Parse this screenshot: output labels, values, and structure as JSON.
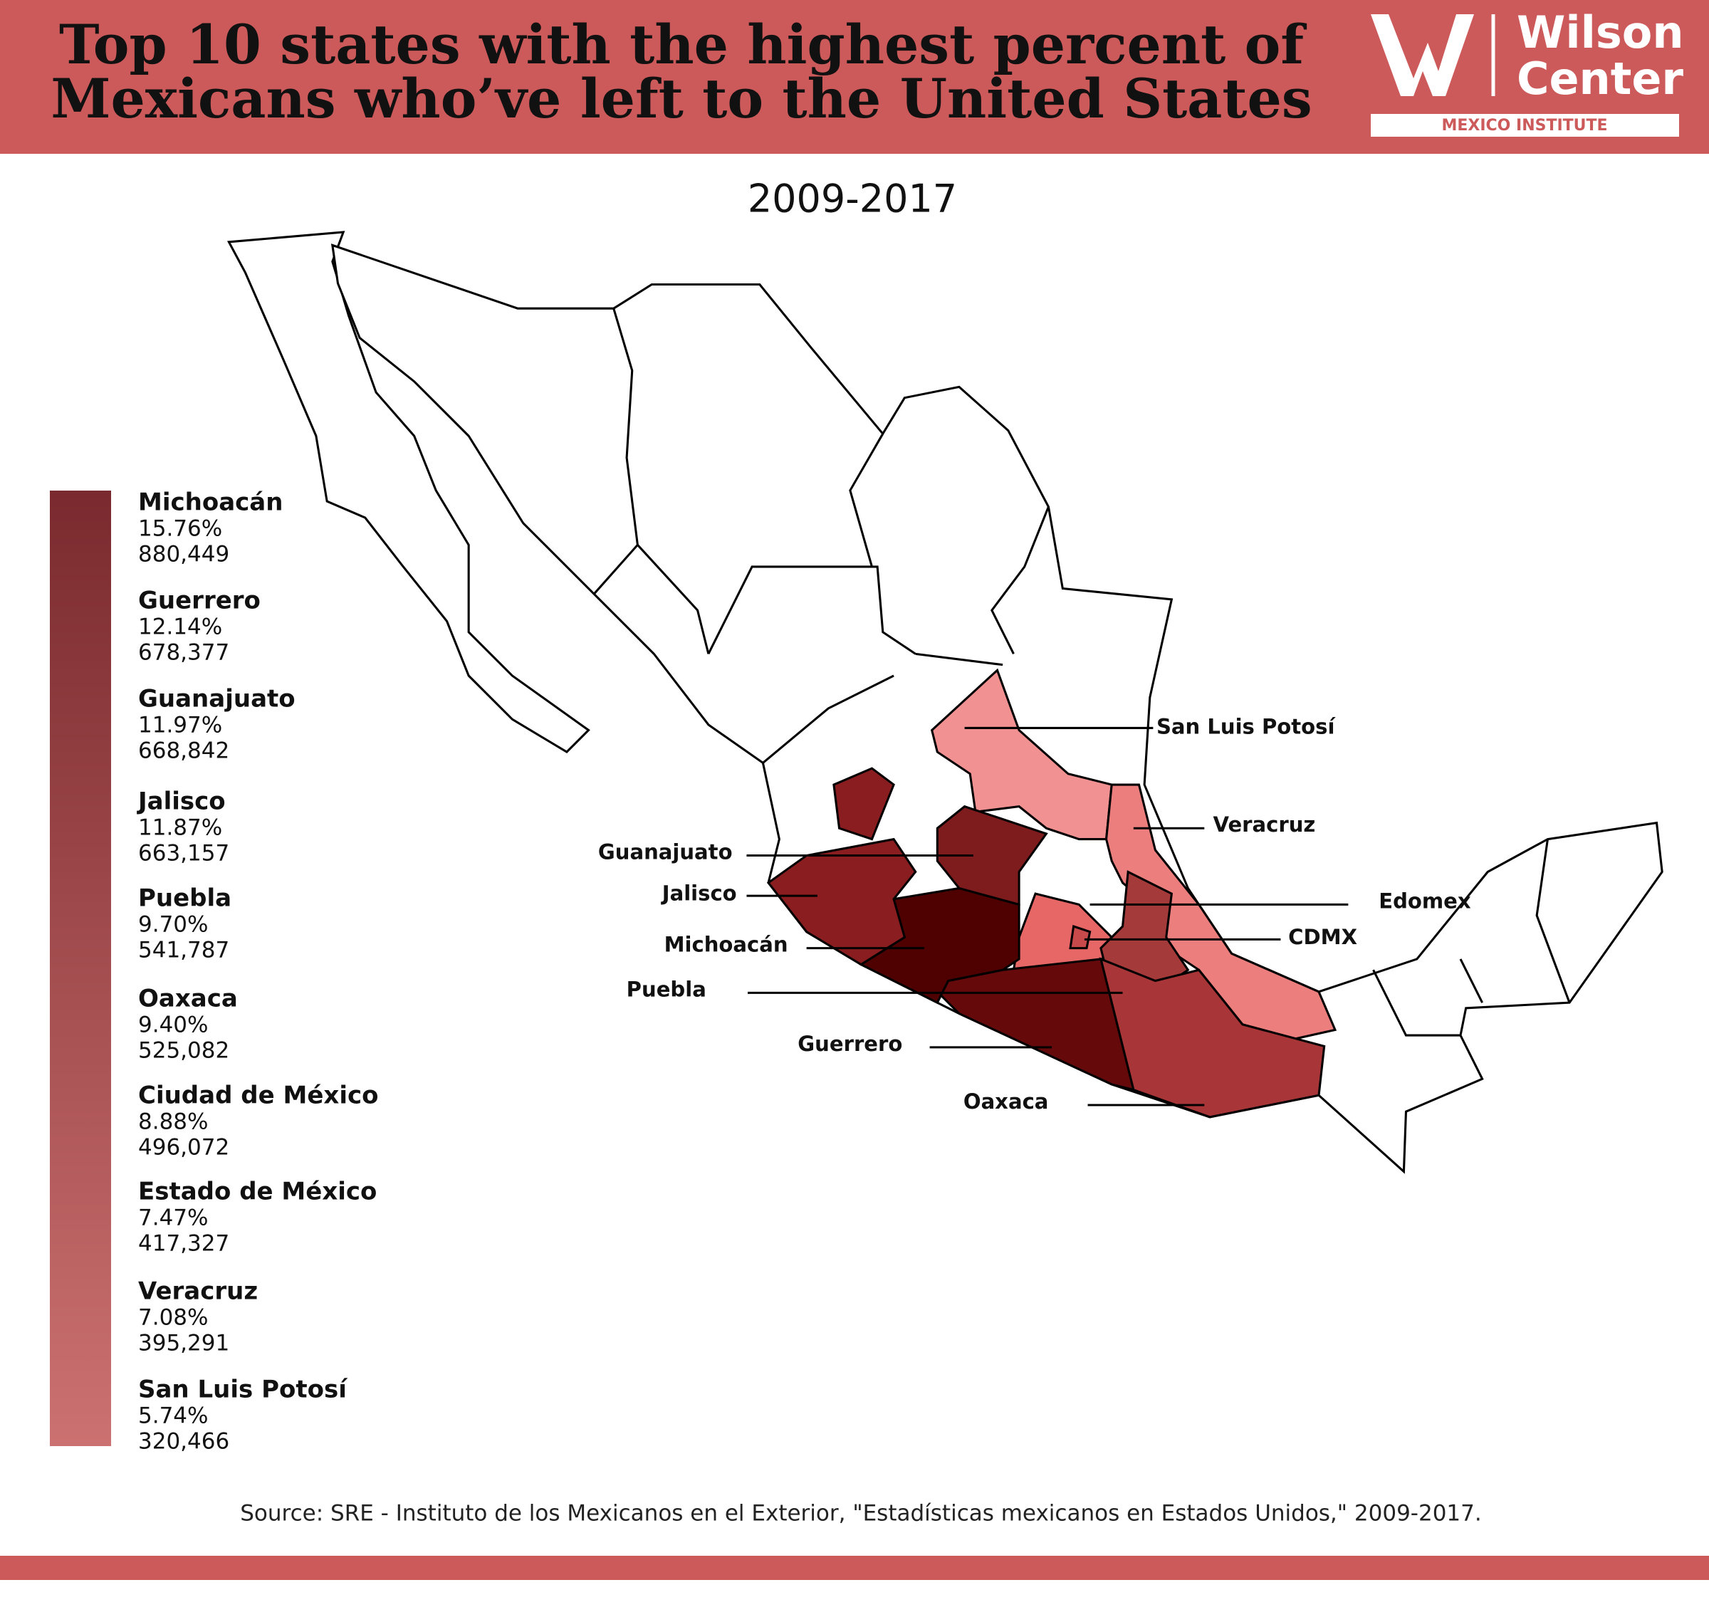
{
  "header": {
    "title_lines": [
      "Top 10 states with the highest percent of",
      "Mexicans who’ve left to the United States"
    ],
    "logo": {
      "line1": "Wilson",
      "line2": "Center",
      "tagline": "MEXICO INSTITUTE"
    }
  },
  "subtitle": "2009-2017",
  "legend": [
    {
      "state": "Michoacán",
      "percent": "15.76%",
      "count": "880,449"
    },
    {
      "state": "Guerrero",
      "percent": "12.14%",
      "count": "678,377"
    },
    {
      "state": "Guanajuato",
      "percent": "11.97%",
      "count": "668,842"
    },
    {
      "state": "Jalisco",
      "percent": "11.87%",
      "count": "663,157"
    },
    {
      "state": "Puebla",
      "percent": "9.70%",
      "count": "541,787"
    },
    {
      "state": "Oaxaca",
      "percent": "9.40%",
      "count": "525,082"
    },
    {
      "state": "Ciudad de México",
      "percent": "8.88%",
      "count": "496,072"
    },
    {
      "state": "Estado de México",
      "percent": "7.47%",
      "count": "417,327"
    },
    {
      "state": "Veracruz",
      "percent": "7.08%",
      "count": "395,291"
    },
    {
      "state": "San Luis Potosí",
      "percent": "5.74%",
      "count": "320,466"
    }
  ],
  "map": {
    "regions": [
      {
        "label": "San Luis Potosí",
        "color": "#f29191"
      },
      {
        "label": "Veracruz",
        "color": "#ec7e7e"
      },
      {
        "label": "Edomex",
        "color": "#e76767"
      },
      {
        "label": "CDMX",
        "color": "#c84a4a"
      },
      {
        "label": "Puebla",
        "color": "#a53a3a"
      },
      {
        "label": "Oaxaca",
        "color": "#a83537"
      },
      {
        "label": "Guerrero",
        "color": "#65090b"
      },
      {
        "label": "Michoacán",
        "color": "#4f0001"
      },
      {
        "label": "Jalisco",
        "color": "#891d1f"
      },
      {
        "label": "Guanajuato",
        "color": "#7e1b1c"
      }
    ]
  },
  "source": "Source: SRE - Instituto de los Mexicanos en el Exterior, \"Estadísticas mexicanos en Estados Unidos,\" 2009-2017."
}
